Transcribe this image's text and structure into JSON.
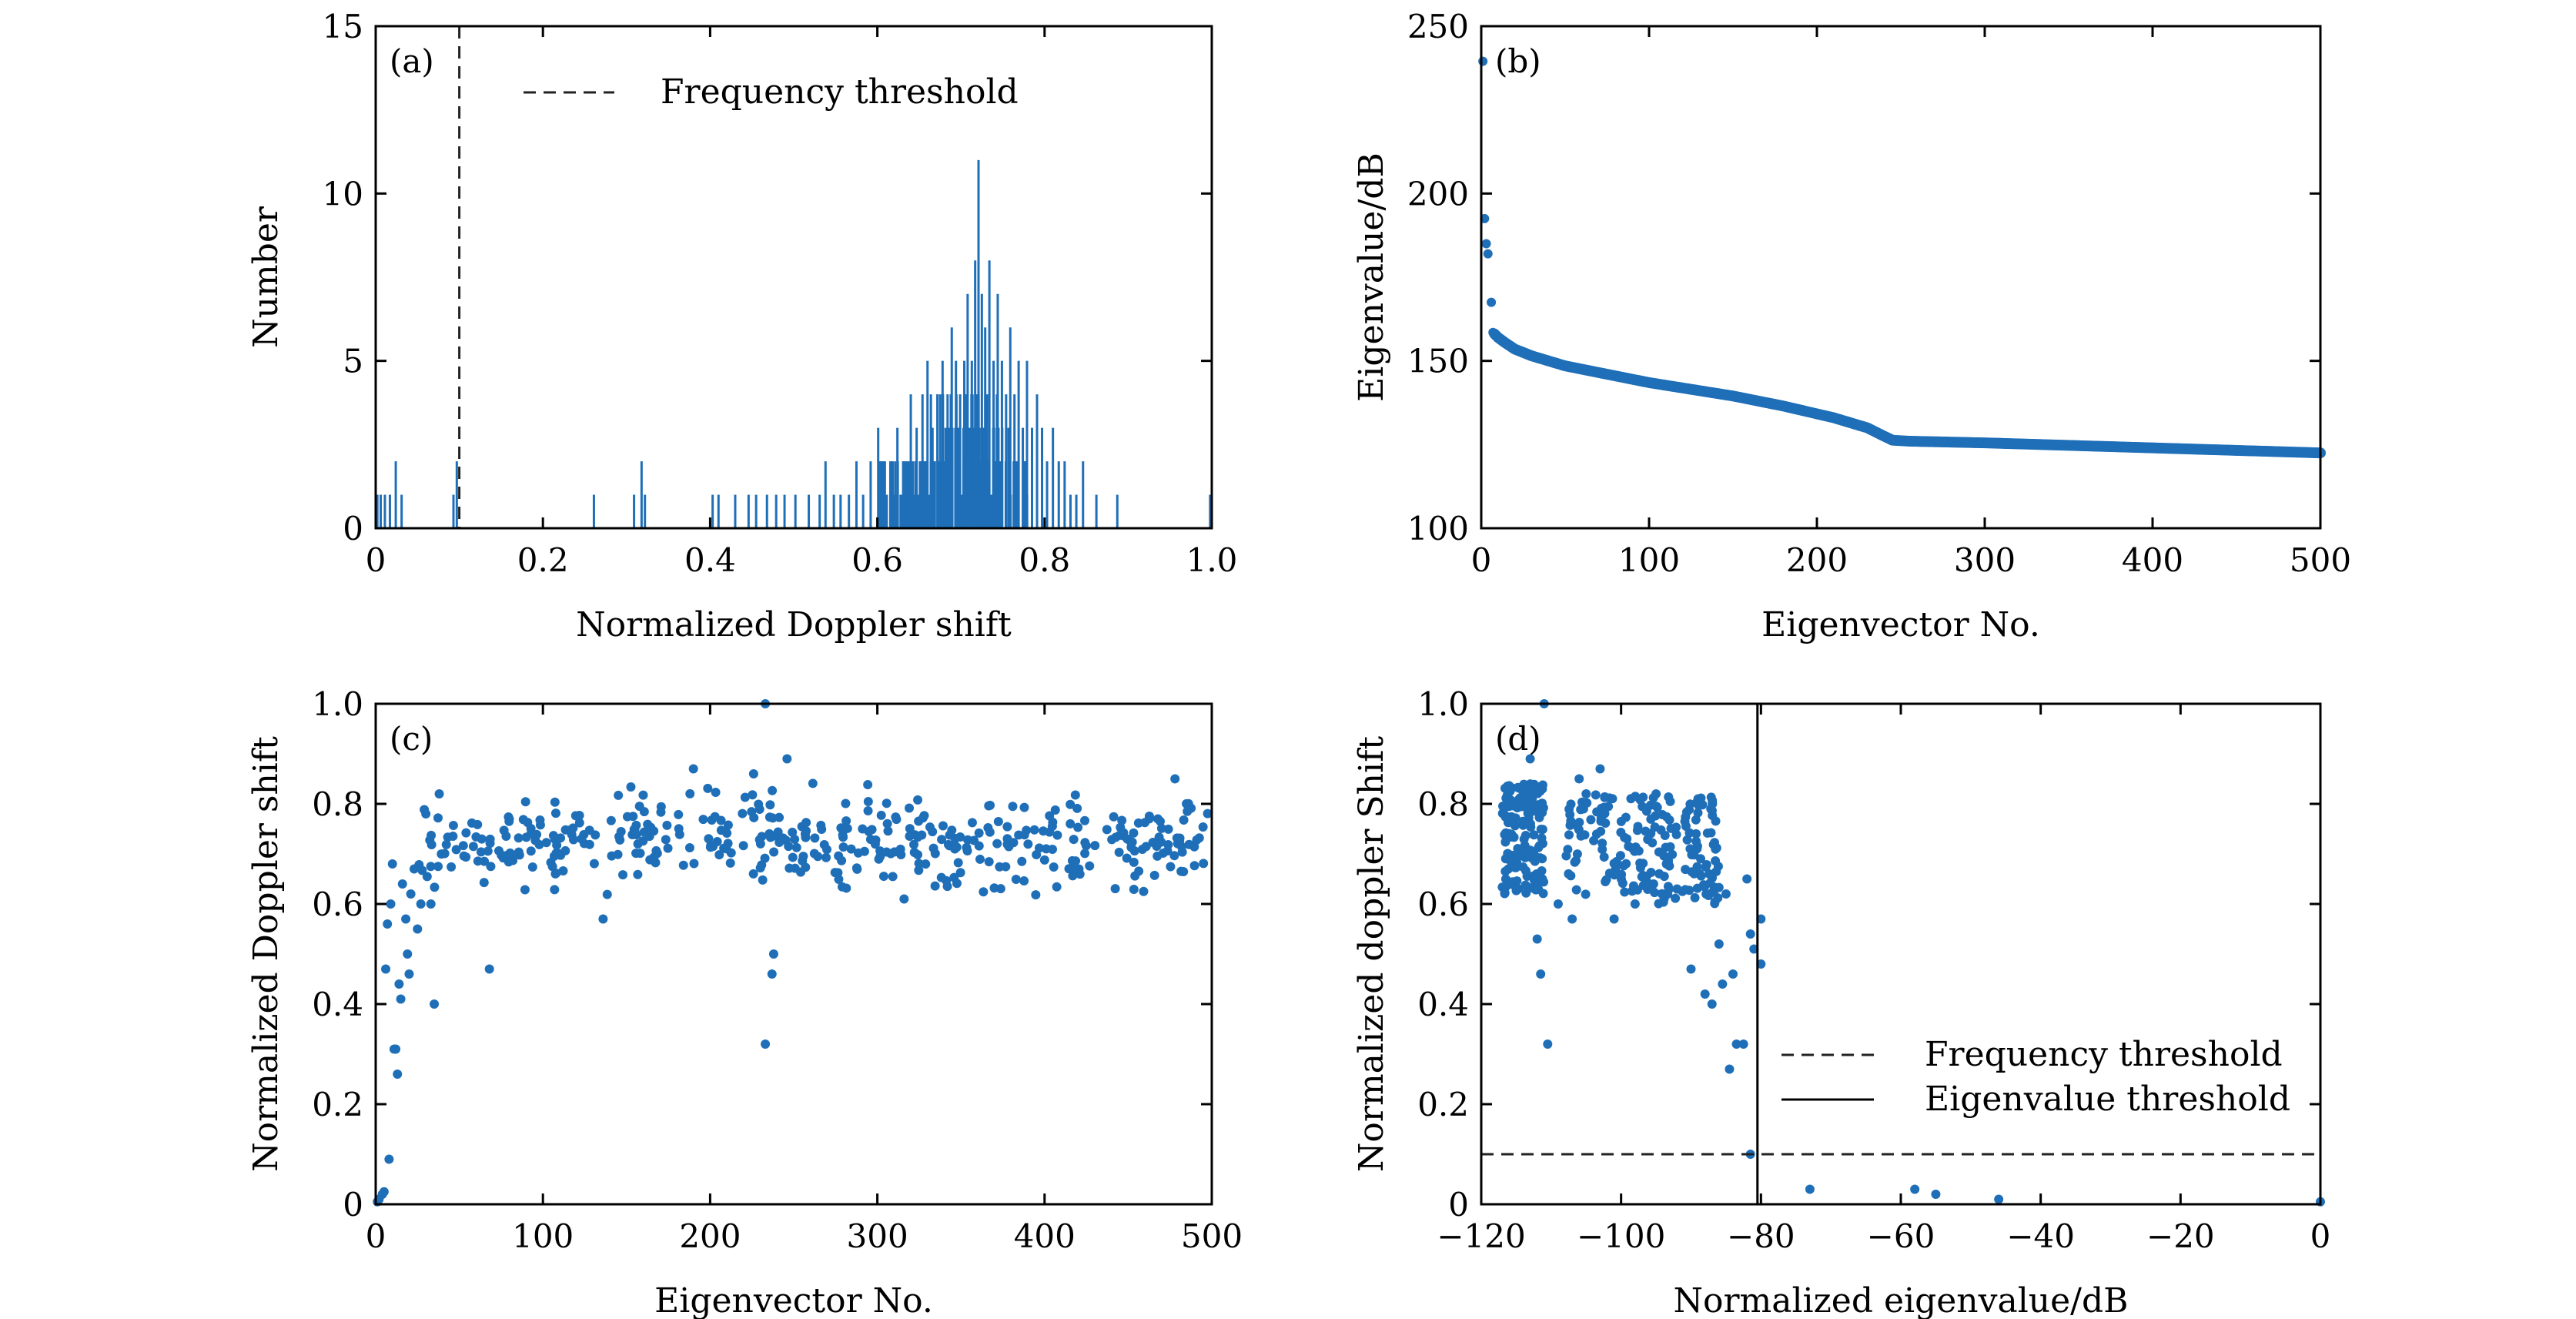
{
  "colors": {
    "data": "#1f6fb8",
    "axis": "#000000",
    "threshold": "#222222"
  },
  "chart_data": [
    {
      "id": "a",
      "type": "bar",
      "panel_label": "(a)",
      "title": "",
      "xlabel": "Normalized Doppler shift",
      "ylabel": "Number",
      "xlim": [
        0,
        1.0
      ],
      "ylim": [
        0,
        15
      ],
      "xticks": [
        0,
        0.2,
        0.4,
        0.6,
        0.8,
        1.0
      ],
      "xtick_labels": [
        "0",
        "0.2",
        "0.4",
        "0.6",
        "0.8",
        "1.0"
      ],
      "yticks": [
        0,
        5,
        10,
        15
      ],
      "ytick_labels": [
        "0",
        "5",
        "10",
        "15"
      ],
      "grid": false,
      "legend": {
        "position": "top-left",
        "entries": [
          {
            "label": "Frequency threshold",
            "style": "dashed"
          }
        ]
      },
      "threshold_x": 0.1,
      "bars": [
        {
          "x": 0.002,
          "value": 1
        },
        {
          "x": 0.006,
          "value": 1
        },
        {
          "x": 0.011,
          "value": 1
        },
        {
          "x": 0.017,
          "value": 1
        },
        {
          "x": 0.024,
          "value": 2
        },
        {
          "x": 0.031,
          "value": 1
        },
        {
          "x": 0.093,
          "value": 1
        },
        {
          "x": 0.097,
          "value": 2
        },
        {
          "x": 0.261,
          "value": 1
        },
        {
          "x": 0.309,
          "value": 1
        },
        {
          "x": 0.318,
          "value": 2
        },
        {
          "x": 0.322,
          "value": 1
        },
        {
          "x": 0.403,
          "value": 1
        },
        {
          "x": 0.41,
          "value": 1
        },
        {
          "x": 0.43,
          "value": 1
        },
        {
          "x": 0.446,
          "value": 1
        },
        {
          "x": 0.455,
          "value": 1
        },
        {
          "x": 0.468,
          "value": 1
        },
        {
          "x": 0.479,
          "value": 1
        },
        {
          "x": 0.489,
          "value": 1
        },
        {
          "x": 0.502,
          "value": 1
        },
        {
          "x": 0.518,
          "value": 1
        },
        {
          "x": 0.531,
          "value": 1
        },
        {
          "x": 0.538,
          "value": 2
        },
        {
          "x": 0.548,
          "value": 1
        },
        {
          "x": 0.556,
          "value": 1
        },
        {
          "x": 0.566,
          "value": 1
        },
        {
          "x": 0.575,
          "value": 2
        },
        {
          "x": 0.583,
          "value": 1
        },
        {
          "x": 0.592,
          "value": 2
        },
        {
          "x": 0.601,
          "value": 3
        },
        {
          "x": 0.609,
          "value": 2
        },
        {
          "x": 0.617,
          "value": 2
        },
        {
          "x": 0.624,
          "value": 3
        },
        {
          "x": 0.632,
          "value": 2
        },
        {
          "x": 0.64,
          "value": 4
        },
        {
          "x": 0.647,
          "value": 3
        },
        {
          "x": 0.654,
          "value": 4
        },
        {
          "x": 0.66,
          "value": 5
        },
        {
          "x": 0.666,
          "value": 3
        },
        {
          "x": 0.672,
          "value": 4
        },
        {
          "x": 0.678,
          "value": 5
        },
        {
          "x": 0.684,
          "value": 4
        },
        {
          "x": 0.689,
          "value": 6
        },
        {
          "x": 0.694,
          "value": 5
        },
        {
          "x": 0.699,
          "value": 4
        },
        {
          "x": 0.704,
          "value": 5
        },
        {
          "x": 0.708,
          "value": 7
        },
        {
          "x": 0.713,
          "value": 5
        },
        {
          "x": 0.717,
          "value": 8
        },
        {
          "x": 0.721,
          "value": 11
        },
        {
          "x": 0.725,
          "value": 7
        },
        {
          "x": 0.729,
          "value": 6
        },
        {
          "x": 0.734,
          "value": 8
        },
        {
          "x": 0.739,
          "value": 5
        },
        {
          "x": 0.744,
          "value": 7
        },
        {
          "x": 0.749,
          "value": 5
        },
        {
          "x": 0.754,
          "value": 4
        },
        {
          "x": 0.759,
          "value": 6
        },
        {
          "x": 0.764,
          "value": 4
        },
        {
          "x": 0.769,
          "value": 5
        },
        {
          "x": 0.774,
          "value": 3
        },
        {
          "x": 0.779,
          "value": 5
        },
        {
          "x": 0.785,
          "value": 3
        },
        {
          "x": 0.791,
          "value": 4
        },
        {
          "x": 0.797,
          "value": 3
        },
        {
          "x": 0.803,
          "value": 2
        },
        {
          "x": 0.81,
          "value": 3
        },
        {
          "x": 0.817,
          "value": 2
        },
        {
          "x": 0.824,
          "value": 2
        },
        {
          "x": 0.831,
          "value": 1
        },
        {
          "x": 0.838,
          "value": 1
        },
        {
          "x": 0.846,
          "value": 2
        },
        {
          "x": 0.862,
          "value": 1
        },
        {
          "x": 0.887,
          "value": 1
        },
        {
          "x": 0.998,
          "value": 1
        }
      ]
    },
    {
      "id": "b",
      "type": "scatter",
      "panel_label": "(b)",
      "title": "",
      "xlabel": "Eigenvector No.",
      "ylabel": "Eigenvalue/dB",
      "xlim": [
        0,
        500
      ],
      "ylim": [
        100,
        250
      ],
      "xticks": [
        0,
        100,
        200,
        300,
        400,
        500
      ],
      "xtick_labels": [
        "0",
        "100",
        "200",
        "300",
        "400",
        "500"
      ],
      "yticks": [
        100,
        150,
        200,
        250
      ],
      "ytick_labels": [
        "100",
        "150",
        "200",
        "250"
      ],
      "grid": false,
      "outliers": [
        {
          "x": 1,
          "y": 239.5
        },
        {
          "x": 2,
          "y": 192.5
        },
        {
          "x": 3,
          "y": 185
        },
        {
          "x": 4,
          "y": 182
        },
        {
          "x": 6,
          "y": 167.5
        },
        {
          "x": 7,
          "y": 158.5
        }
      ],
      "curve_anchors": [
        {
          "x": 8,
          "y": 158
        },
        {
          "x": 10,
          "y": 157
        },
        {
          "x": 14,
          "y": 155.5
        },
        {
          "x": 20,
          "y": 153.5
        },
        {
          "x": 30,
          "y": 151.5
        },
        {
          "x": 50,
          "y": 148.5
        },
        {
          "x": 100,
          "y": 143.5
        },
        {
          "x": 150,
          "y": 139.5
        },
        {
          "x": 180,
          "y": 136.5
        },
        {
          "x": 210,
          "y": 133
        },
        {
          "x": 230,
          "y": 130
        },
        {
          "x": 240,
          "y": 127.5
        },
        {
          "x": 245,
          "y": 126.3
        },
        {
          "x": 255,
          "y": 126
        },
        {
          "x": 300,
          "y": 125.5
        },
        {
          "x": 400,
          "y": 124
        },
        {
          "x": 500,
          "y": 122.5
        }
      ]
    },
    {
      "id": "c",
      "type": "scatter",
      "panel_label": "(c)",
      "title": "",
      "xlabel": "Eigenvector No.",
      "ylabel": "Normalized Doppler shift",
      "xlim": [
        0,
        500
      ],
      "ylim": [
        0,
        1.0
      ],
      "xticks": [
        0,
        100,
        200,
        300,
        400,
        500
      ],
      "xtick_labels": [
        "0",
        "100",
        "200",
        "300",
        "400",
        "500"
      ],
      "yticks": [
        0,
        0.2,
        0.4,
        0.6,
        0.8,
        1.0
      ],
      "ytick_labels": [
        "0",
        "0.2",
        "0.4",
        "0.6",
        "0.8",
        "1.0"
      ],
      "grid": false,
      "points": [
        {
          "x": 1,
          "y": 0.005
        },
        {
          "x": 2,
          "y": 0.01
        },
        {
          "x": 4,
          "y": 0.02
        },
        {
          "x": 5,
          "y": 0.025
        },
        {
          "x": 8,
          "y": 0.09
        },
        {
          "x": 6,
          "y": 0.47
        },
        {
          "x": 7,
          "y": 0.56
        },
        {
          "x": 9,
          "y": 0.6
        },
        {
          "x": 10,
          "y": 0.68
        },
        {
          "x": 11,
          "y": 0.31
        },
        {
          "x": 12,
          "y": 0.31
        },
        {
          "x": 13,
          "y": 0.26
        },
        {
          "x": 14,
          "y": 0.44
        },
        {
          "x": 15,
          "y": 0.41
        },
        {
          "x": 16,
          "y": 0.64
        },
        {
          "x": 18,
          "y": 0.57
        },
        {
          "x": 19,
          "y": 0.5
        },
        {
          "x": 20,
          "y": 0.46
        },
        {
          "x": 21,
          "y": 0.62
        },
        {
          "x": 23,
          "y": 0.67
        },
        {
          "x": 25,
          "y": 0.55
        },
        {
          "x": 27,
          "y": 0.6
        },
        {
          "x": 30,
          "y": 0.78
        },
        {
          "x": 33,
          "y": 0.6
        },
        {
          "x": 35,
          "y": 0.4
        },
        {
          "x": 38,
          "y": 0.82
        },
        {
          "x": 68,
          "y": 0.47
        },
        {
          "x": 136,
          "y": 0.57
        },
        {
          "x": 233,
          "y": 0.32
        },
        {
          "x": 237,
          "y": 0.46
        },
        {
          "x": 238,
          "y": 0.5
        },
        {
          "x": 233,
          "y": 1.0
        },
        {
          "x": 246,
          "y": 0.89
        },
        {
          "x": 190,
          "y": 0.87
        },
        {
          "x": 226,
          "y": 0.86
        },
        {
          "x": 316,
          "y": 0.61
        },
        {
          "x": 478,
          "y": 0.85
        }
      ],
      "band": {
        "x_range": [
          25,
          500
        ],
        "y_center": 0.72,
        "y_spread": 0.09,
        "count": 440
      }
    },
    {
      "id": "d",
      "type": "scatter",
      "panel_label": "(d)",
      "title": "",
      "xlabel": "Normalized eigenvalue/dB",
      "ylabel": "Normalized doppler Shift",
      "xlim": [
        -120,
        0
      ],
      "ylim": [
        0,
        1.0
      ],
      "xticks": [
        -120,
        -100,
        -80,
        -60,
        -40,
        -20,
        0
      ],
      "xtick_labels": [
        "−120",
        "−100",
        "−80",
        "−60",
        "−40",
        "−20",
        "0"
      ],
      "yticks": [
        0,
        0.2,
        0.4,
        0.6,
        0.8,
        1.0
      ],
      "ytick_labels": [
        "0",
        "0.2",
        "0.4",
        "0.6",
        "0.8",
        "1.0"
      ],
      "grid": false,
      "legend": {
        "position": "bottom-right",
        "entries": [
          {
            "label": "Frequency threshold",
            "style": "dashed"
          },
          {
            "label": "Eigenvalue threshold",
            "style": "solid"
          }
        ]
      },
      "frequency_threshold_y": 0.1,
      "eigenvalue_threshold_x": -80.5,
      "points": [
        {
          "x": -111,
          "y": 1.0
        },
        {
          "x": -113,
          "y": 0.89
        },
        {
          "x": -112,
          "y": 0.53
        },
        {
          "x": -111.5,
          "y": 0.46
        },
        {
          "x": -110.5,
          "y": 0.32
        },
        {
          "x": -109,
          "y": 0.6
        },
        {
          "x": -107,
          "y": 0.57
        },
        {
          "x": -106,
          "y": 0.85
        },
        {
          "x": -105,
          "y": 0.82
        },
        {
          "x": -103,
          "y": 0.87
        },
        {
          "x": -101,
          "y": 0.57
        },
        {
          "x": -98,
          "y": 0.6
        },
        {
          "x": -95,
          "y": 0.82
        },
        {
          "x": -92,
          "y": 0.63
        },
        {
          "x": -90,
          "y": 0.47
        },
        {
          "x": -89,
          "y": 0.81
        },
        {
          "x": -88,
          "y": 0.42
        },
        {
          "x": -87,
          "y": 0.4
        },
        {
          "x": -86,
          "y": 0.52
        },
        {
          "x": -85.5,
          "y": 0.44
        },
        {
          "x": -85,
          "y": 0.62
        },
        {
          "x": -84.5,
          "y": 0.27
        },
        {
          "x": -84,
          "y": 0.46
        },
        {
          "x": -83.5,
          "y": 0.32
        },
        {
          "x": -82.5,
          "y": 0.32
        },
        {
          "x": -82,
          "y": 0.65
        },
        {
          "x": -81.5,
          "y": 0.54
        },
        {
          "x": -81,
          "y": 0.51
        },
        {
          "x": -81.5,
          "y": 0.1
        },
        {
          "x": -80,
          "y": 0.57
        },
        {
          "x": -80,
          "y": 0.48
        },
        {
          "x": -73,
          "y": 0.03
        },
        {
          "x": -58,
          "y": 0.03
        },
        {
          "x": -55,
          "y": 0.02
        },
        {
          "x": -46,
          "y": 0.01
        },
        {
          "x": 0,
          "y": 0.005
        }
      ],
      "clusters": [
        {
          "x_range": [
            -117,
            -111
          ],
          "y_range": [
            0.62,
            0.84
          ],
          "count": 150
        },
        {
          "x_range": [
            -108,
            -86
          ],
          "y_range": [
            0.6,
            0.82
          ],
          "count": 200
        }
      ]
    }
  ]
}
